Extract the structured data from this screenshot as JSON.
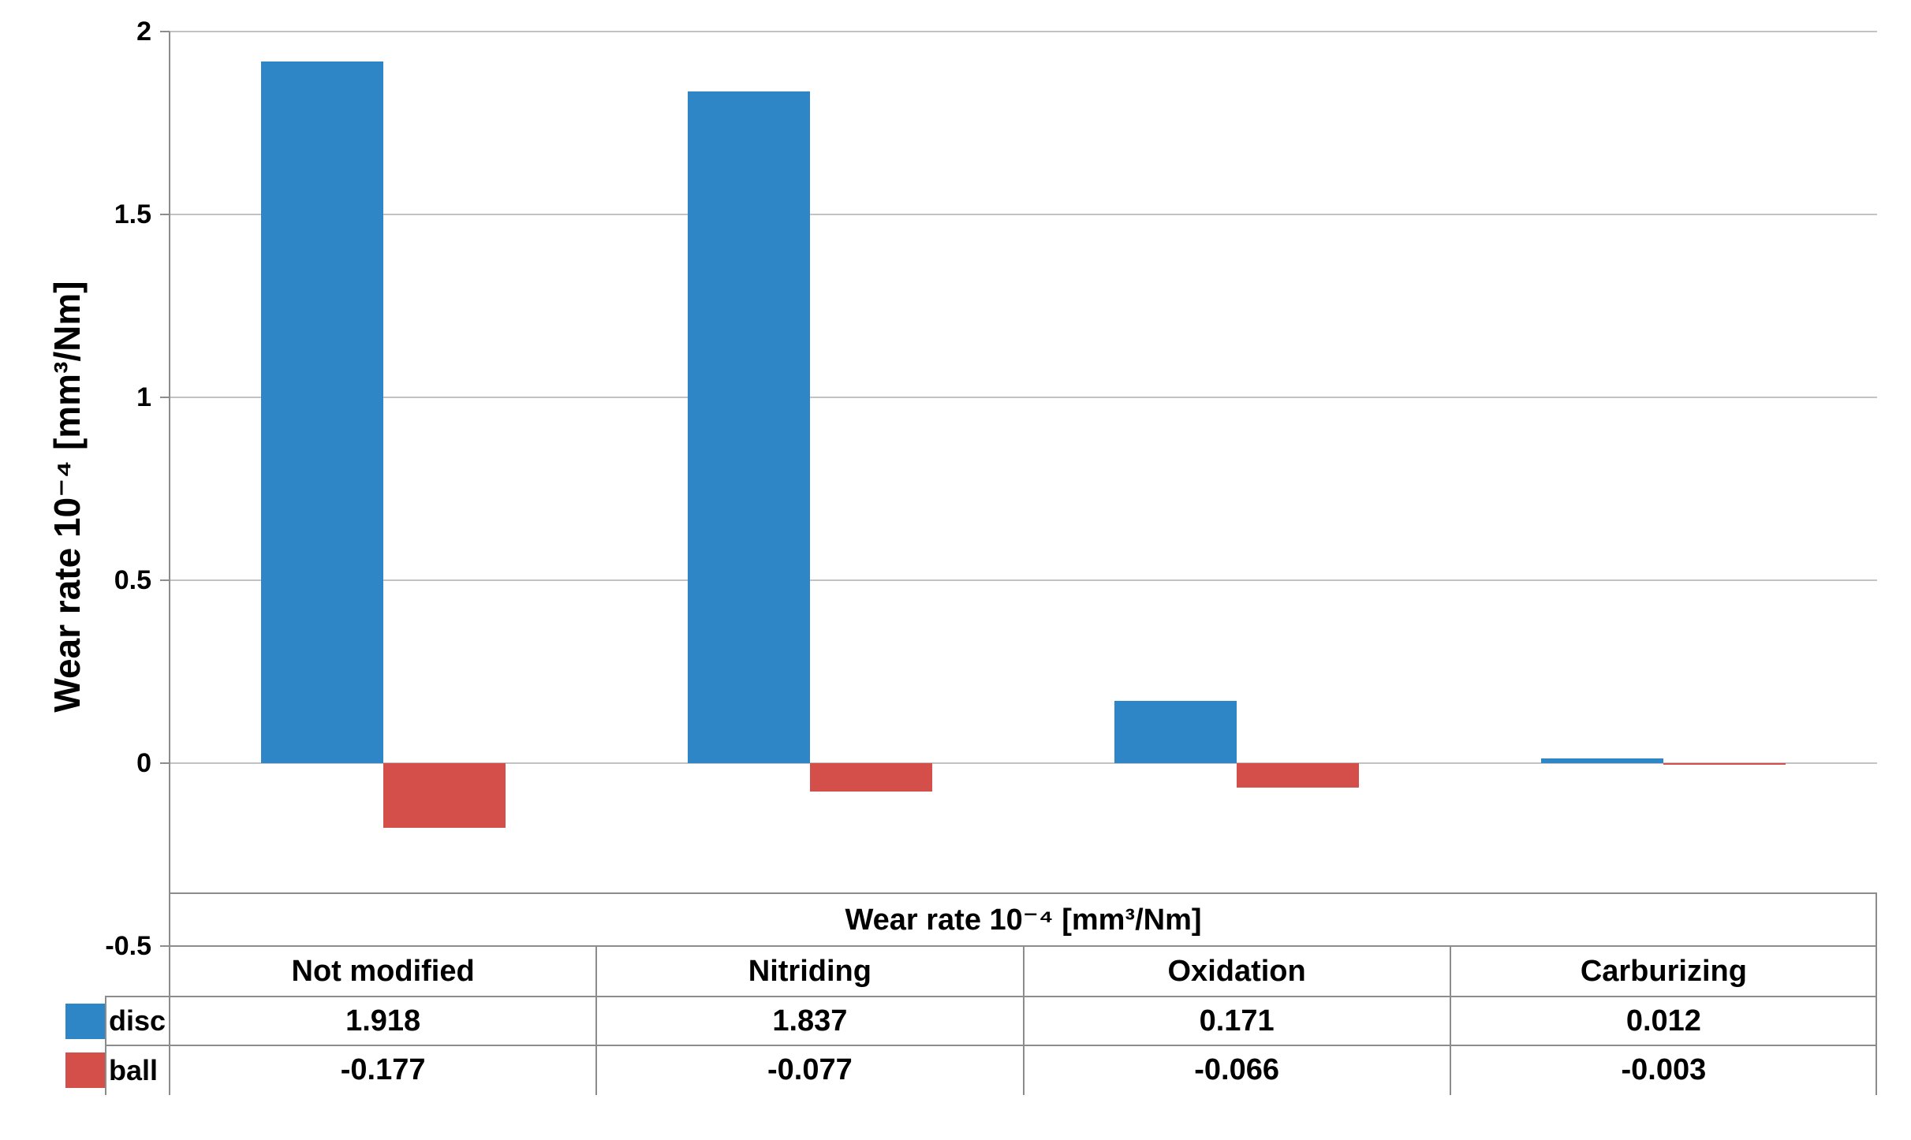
{
  "chart_data": {
    "type": "bar",
    "title": "",
    "ylabel": "Wear rate 10⁻⁴ [mm³/Nm]",
    "xlabel": "",
    "categories": [
      "Not modified",
      "Nitriding",
      "Oxidation",
      "Carburizing"
    ],
    "series": [
      {
        "name": "disc",
        "color": "#2F86C7",
        "values": [
          1.918,
          1.837,
          0.171,
          0.012
        ]
      },
      {
        "name": "ball",
        "color": "#D44F49",
        "values": [
          -0.177,
          -0.077,
          -0.066,
          -0.003
        ]
      }
    ],
    "ylim": [
      -0.5,
      2
    ],
    "ytick_labels": [
      "2",
      "1.5",
      "1",
      "0.5",
      "0",
      "-0.5"
    ],
    "grid": true,
    "legend_position": "data-table-left",
    "data_table": {
      "header": "Wear rate 10⁻⁴ [mm³/Nm]",
      "row_labels": [
        "disc",
        "ball"
      ],
      "rows": [
        [
          "1.918",
          "1.837",
          "0.171",
          "0.012"
        ],
        [
          "-0.177",
          "-0.077",
          "-0.066",
          "-0.003"
        ]
      ]
    },
    "colors": {
      "grid": "#C3C3C3",
      "axis": "#8C8C8C",
      "table_border": "#8C8C8C",
      "text": "#000000",
      "background": "#FFFFFF"
    }
  }
}
